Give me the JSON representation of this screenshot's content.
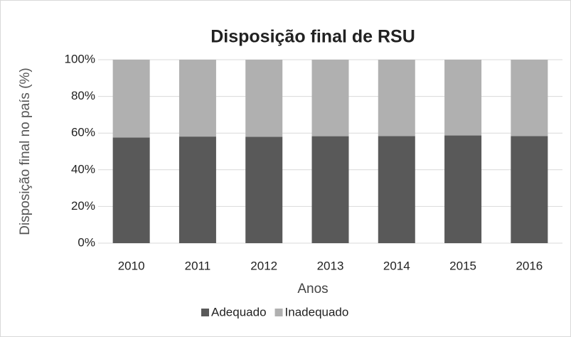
{
  "chart_data": {
    "type": "stacked_bar",
    "title": "Disposição final de RSU",
    "x_label": "Anos",
    "y_label": "Disposição final no país (%)",
    "categories": [
      "2010",
      "2011",
      "2012",
      "2013",
      "2014",
      "2015",
      "2016"
    ],
    "series": [
      {
        "name": "Adequado",
        "color": "#595959",
        "values": [
          57.6,
          58.1,
          58.0,
          58.3,
          58.4,
          58.7,
          58.4
        ]
      },
      {
        "name": "Inadequado",
        "color": "#b0b0b0",
        "values": [
          42.4,
          41.9,
          42.0,
          41.7,
          41.6,
          41.3,
          41.6
        ]
      }
    ],
    "ylim": [
      0,
      100
    ],
    "yticks": [
      {
        "value": 0,
        "label": "0%"
      },
      {
        "value": 20,
        "label": "20%"
      },
      {
        "value": 40,
        "label": "40%"
      },
      {
        "value": 60,
        "label": "60%"
      },
      {
        "value": 80,
        "label": "80%"
      },
      {
        "value": 100,
        "label": "100%"
      }
    ],
    "grid": true,
    "legend": "bottom"
  }
}
